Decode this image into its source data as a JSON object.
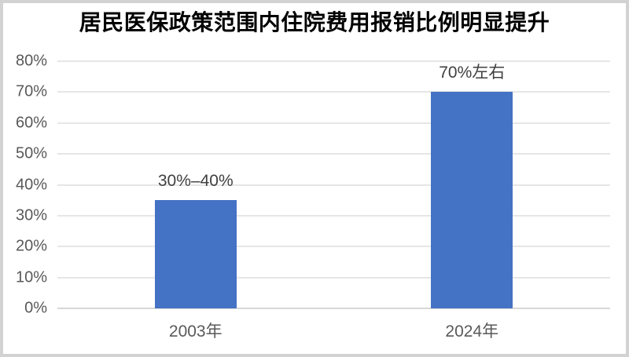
{
  "frame": {
    "border_color": "#d2d2d2",
    "background_color": "#ffffff"
  },
  "chart_data": {
    "type": "bar",
    "title": "居民医保政策范围内住院费用报销比例明显提升",
    "categories": [
      "2003年",
      "2024年"
    ],
    "values": [
      35,
      70
    ],
    "data_labels": [
      "30%–40%",
      "70%左右"
    ],
    "ylim": [
      0,
      80
    ],
    "yticks": [
      0,
      10,
      20,
      30,
      40,
      50,
      60,
      70,
      80
    ],
    "ytick_labels": [
      "0%",
      "10%",
      "20%",
      "30%",
      "40%",
      "50%",
      "60%",
      "70%",
      "80%"
    ],
    "xlabel": "",
    "ylabel": "",
    "grid": "horizontal",
    "legend": "none",
    "bar_color": "#4472C4",
    "gridline_color": "#e6e6e6",
    "baseline_color": "#d7d7d7",
    "axis_label_color": "#595959",
    "data_label_color": "#3f3f3f",
    "title_color": "#000000"
  }
}
